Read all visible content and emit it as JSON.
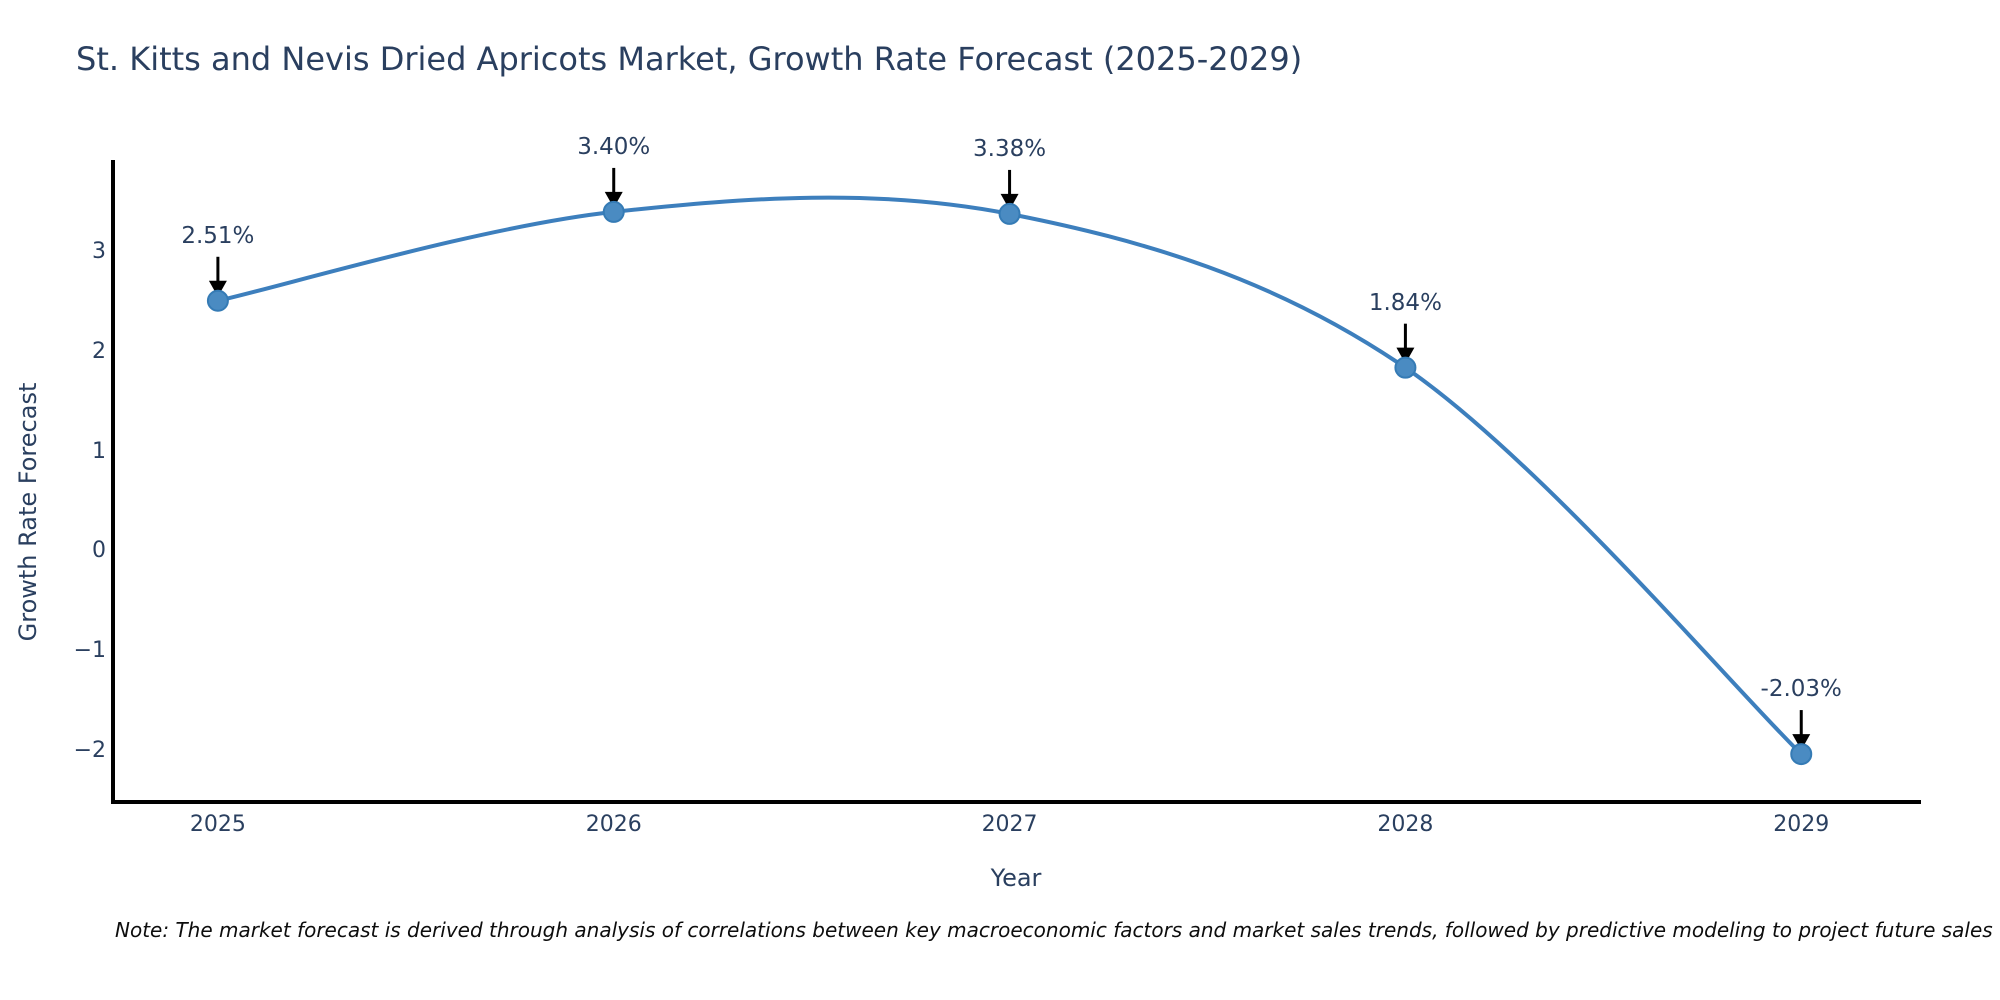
{
  "title": "St. Kitts and Nevis Dried Apricots Market, Growth Rate Forecast (2025-2029)",
  "note": "Note: The market forecast is derived through analysis of correlations between key macroeconomic factors and market sales trends, followed by predictive modeling to project future sales",
  "chart_data": {
    "type": "line",
    "title": "St. Kitts and Nevis Dried Apricots Market, Growth Rate Forecast (2025-2029)",
    "xlabel": "Year",
    "ylabel": "Growth Rate Forecast",
    "x": [
      2025,
      2026,
      2027,
      2028,
      2029
    ],
    "values": [
      2.51,
      3.4,
      3.38,
      1.84,
      -2.03
    ],
    "point_labels": [
      "2.51%",
      "3.40%",
      "3.38%",
      "1.84%",
      "-2.03%"
    ],
    "xtick_labels": [
      "2025",
      "2026",
      "2027",
      "2028",
      "2029"
    ],
    "yticks": [
      3,
      2,
      1,
      0,
      -1,
      -2
    ],
    "ytick_labels": [
      "3",
      "2",
      "1",
      "0",
      "−1",
      "−2"
    ],
    "xlim": [
      2024.735,
      2029.3
    ],
    "ylim": [
      -2.49,
      3.92
    ],
    "grid": false,
    "legend": false,
    "line_shape": "spline",
    "annotation_arrows": true,
    "colors": {
      "line": "#3d7fbd",
      "marker_fill": "#4a8bc2",
      "marker_stroke": "#357bb5",
      "arrow": "#000000",
      "text": "#2a3f5f",
      "axis_line": "#000000",
      "background": "#ffffff"
    }
  }
}
